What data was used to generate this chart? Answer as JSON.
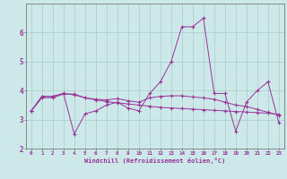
{
  "xlabel": "Windchill (Refroidissement éolien,°C)",
  "background_color": "#cce8e8",
  "grid_color": "#aacccc",
  "line_color": "#993399",
  "x": [
    0,
    1,
    2,
    3,
    4,
    5,
    6,
    7,
    8,
    9,
    10,
    11,
    12,
    13,
    14,
    15,
    16,
    17,
    18,
    19,
    20,
    21,
    22,
    23
  ],
  "series": [
    [
      3.3,
      3.8,
      3.8,
      3.9,
      2.5,
      3.2,
      3.3,
      3.5,
      3.6,
      3.4,
      3.3,
      3.9,
      4.3,
      5.0,
      6.2,
      6.2,
      6.5,
      3.9,
      3.9,
      2.6,
      3.6,
      4.0,
      4.3,
      2.9
    ],
    [
      3.3,
      3.8,
      3.8,
      3.9,
      3.85,
      3.75,
      3.7,
      3.68,
      3.72,
      3.65,
      3.6,
      3.75,
      3.8,
      3.82,
      3.82,
      3.78,
      3.75,
      3.7,
      3.6,
      3.5,
      3.45,
      3.35,
      3.25,
      3.15
    ],
    [
      3.3,
      3.75,
      3.75,
      3.88,
      3.88,
      3.75,
      3.68,
      3.62,
      3.58,
      3.54,
      3.5,
      3.46,
      3.42,
      3.4,
      3.38,
      3.36,
      3.34,
      3.32,
      3.3,
      3.28,
      3.26,
      3.24,
      3.22,
      3.18
    ]
  ],
  "ylim": [
    2.0,
    7.0
  ],
  "xlim": [
    -0.5,
    23.5
  ],
  "yticks": [
    2,
    3,
    4,
    5,
    6
  ],
  "xticks": [
    0,
    1,
    2,
    3,
    4,
    5,
    6,
    7,
    8,
    9,
    10,
    11,
    12,
    13,
    14,
    15,
    16,
    17,
    18,
    19,
    20,
    21,
    22,
    23
  ]
}
